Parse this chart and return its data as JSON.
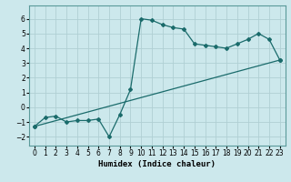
{
  "xlabel": "Humidex (Indice chaleur)",
  "ylabel": "",
  "xlim": [
    -0.5,
    23.5
  ],
  "ylim": [
    -2.6,
    6.9
  ],
  "xticks": [
    0,
    1,
    2,
    3,
    4,
    5,
    6,
    7,
    8,
    9,
    10,
    11,
    12,
    13,
    14,
    15,
    16,
    17,
    18,
    19,
    20,
    21,
    22,
    23
  ],
  "yticks": [
    -2,
    -1,
    0,
    1,
    2,
    3,
    4,
    5,
    6
  ],
  "bg_color": "#cce8ec",
  "grid_color": "#b0cfd4",
  "line_color": "#1a6b6b",
  "line1_x": [
    0,
    1,
    2,
    3,
    4,
    5,
    6,
    7,
    8,
    9,
    10,
    11,
    12,
    13,
    14,
    15,
    16,
    17,
    18,
    19,
    20,
    21,
    22,
    23
  ],
  "line1_y": [
    -1.3,
    -0.7,
    -0.6,
    -1.0,
    -0.9,
    -0.9,
    -0.8,
    -2.0,
    -0.5,
    1.2,
    6.0,
    5.9,
    5.6,
    5.4,
    5.3,
    4.3,
    4.2,
    4.1,
    4.0,
    4.3,
    4.6,
    5.0,
    4.6,
    3.2
  ],
  "line2_x": [
    0,
    23
  ],
  "line2_y": [
    -1.3,
    3.2
  ]
}
